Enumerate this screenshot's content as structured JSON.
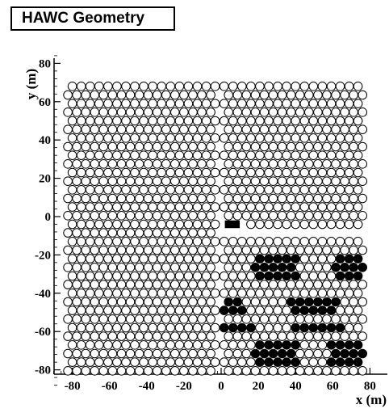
{
  "chart_data": {
    "type": "scatter",
    "title": "HAWC Geometry",
    "xlabel": "x (m)",
    "ylabel": "y (m)",
    "xlim": [
      -93,
      85
    ],
    "ylim": [
      -88,
      85
    ],
    "xticks": [
      -80,
      -60,
      -40,
      -20,
      0,
      20,
      40,
      60,
      80
    ],
    "yticks": [
      -80,
      -60,
      -40,
      -20,
      0,
      20,
      40,
      60,
      80
    ],
    "grid": false,
    "marker": "circle",
    "tank_spacing_m": 4.8,
    "tank_rows_y": [
      68,
      63.5,
      59,
      54.5,
      50,
      45.5,
      41,
      36.5,
      32,
      27.5,
      23,
      18.5,
      14,
      9.5,
      5,
      0.5,
      -4,
      -8.5,
      -13,
      -17.5,
      -22,
      -26.5,
      -31,
      -35.5,
      -40,
      -44.5,
      -49,
      -53.5,
      -58,
      -62.5,
      -67,
      -71.5,
      -76,
      -80.5
    ],
    "tank_columns_x_range": [
      -80,
      78
    ],
    "outline_color": "#000000",
    "fill_color_active": "#000000",
    "fill_color_inactive": "#ffffff",
    "series": [
      {
        "marker_style": "open",
        "points": "all tanks of the array not listed in the filled series"
      },
      {
        "marker_style": "filled",
        "points": [
          [
            20,
            -24
          ],
          [
            25,
            -24
          ],
          [
            30,
            -24
          ],
          [
            35,
            -24
          ],
          [
            40,
            -24
          ],
          [
            18,
            -28
          ],
          [
            23,
            -28
          ],
          [
            28,
            -28
          ],
          [
            33,
            -28
          ],
          [
            38,
            -28
          ],
          [
            20,
            -33
          ],
          [
            25,
            -33
          ],
          [
            30,
            -33
          ],
          [
            35,
            -33
          ],
          [
            40,
            -33
          ],
          [
            62,
            -24
          ],
          [
            67,
            -24
          ],
          [
            72,
            -24
          ],
          [
            77,
            -24
          ],
          [
            60,
            -28
          ],
          [
            65,
            -28
          ],
          [
            70,
            -28
          ],
          [
            75,
            -28
          ],
          [
            62,
            -33
          ],
          [
            67,
            -33
          ],
          [
            72,
            -33
          ],
          [
            77,
            -33
          ],
          [
            4,
            -46
          ],
          [
            9,
            -46
          ],
          [
            2,
            -51
          ],
          [
            7,
            -51
          ],
          [
            12,
            -51
          ],
          [
            4,
            -56
          ],
          [
            9,
            -56
          ],
          [
            14,
            -56
          ],
          [
            2,
            -60
          ],
          [
            7,
            -60
          ],
          [
            12,
            -60
          ],
          [
            17,
            -60
          ],
          [
            40,
            -46
          ],
          [
            45,
            -46
          ],
          [
            50,
            -46
          ],
          [
            55,
            -46
          ],
          [
            60,
            -46
          ],
          [
            38,
            -51
          ],
          [
            43,
            -51
          ],
          [
            48,
            -51
          ],
          [
            53,
            -51
          ],
          [
            58,
            -51
          ],
          [
            40,
            -56
          ],
          [
            45,
            -56
          ],
          [
            50,
            -56
          ],
          [
            55,
            -56
          ],
          [
            60,
            -56
          ],
          [
            42,
            -60
          ],
          [
            47,
            -60
          ],
          [
            52,
            -60
          ],
          [
            57,
            -60
          ],
          [
            62,
            -60
          ],
          [
            20,
            -69
          ],
          [
            25,
            -69
          ],
          [
            30,
            -69
          ],
          [
            35,
            -69
          ],
          [
            40,
            -69
          ],
          [
            18,
            -73
          ],
          [
            23,
            -73
          ],
          [
            28,
            -73
          ],
          [
            33,
            -73
          ],
          [
            38,
            -73
          ],
          [
            20,
            -78
          ],
          [
            25,
            -78
          ],
          [
            30,
            -78
          ],
          [
            35,
            -78
          ],
          [
            40,
            -78
          ],
          [
            60,
            -69
          ],
          [
            65,
            -69
          ],
          [
            70,
            -69
          ],
          [
            75,
            -69
          ],
          [
            62,
            -73
          ],
          [
            67,
            -73
          ],
          [
            72,
            -73
          ],
          [
            77,
            -73
          ],
          [
            60,
            -78
          ],
          [
            65,
            -78
          ],
          [
            70,
            -78
          ],
          [
            75,
            -78
          ]
        ]
      }
    ],
    "counting_house": {
      "x": 6,
      "y": -4,
      "width_m": 8,
      "height_m": 4
    }
  }
}
